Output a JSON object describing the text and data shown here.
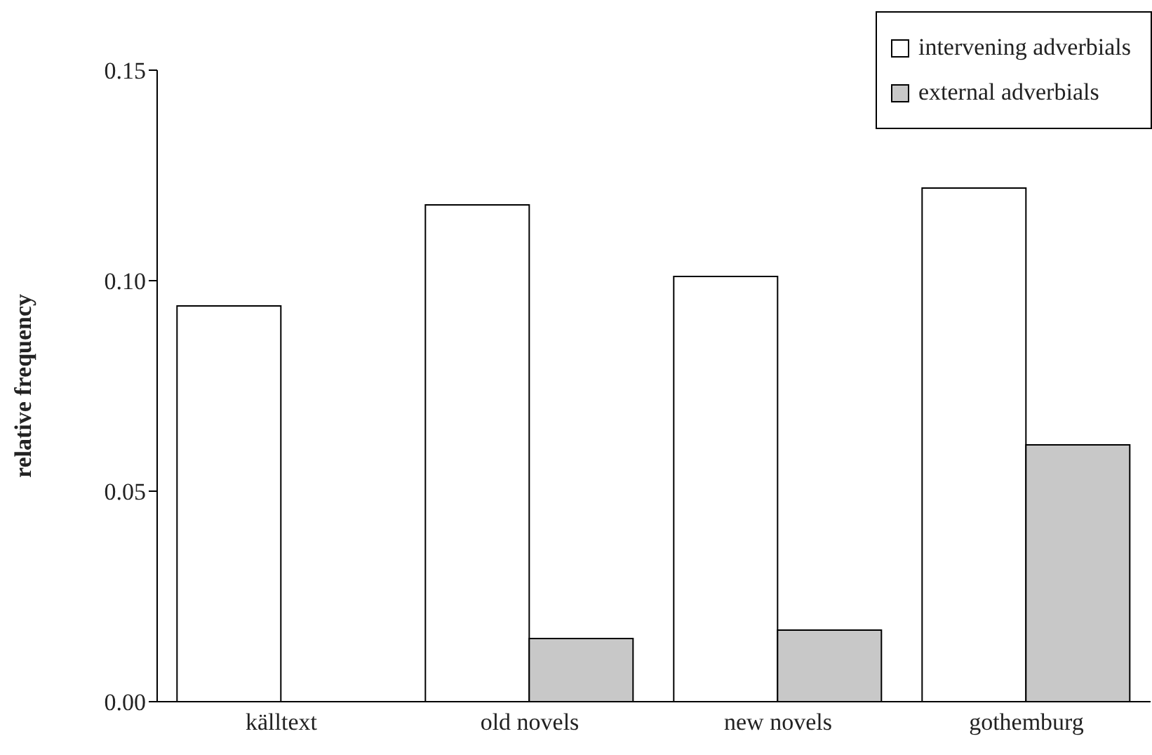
{
  "chart_data": {
    "type": "bar",
    "ylabel": "relative frequency",
    "categories": [
      "källtext",
      "old novels",
      "new novels",
      "gothemburg"
    ],
    "series": [
      {
        "name": "intervening adverbials",
        "color": "#ffffff",
        "values": [
          0.094,
          0.118,
          0.101,
          0.122
        ]
      },
      {
        "name": "external adverbials",
        "color": "#c8c8c8",
        "values": [
          0,
          0.015,
          0.017,
          0.061
        ]
      }
    ],
    "ylim": [
      0,
      0.15
    ],
    "yticks": [
      {
        "value": 0,
        "label": "0.00"
      },
      0.05,
      {
        "value": 0.1,
        "label": "0.10"
      },
      {
        "value": 0.15,
        "label": "0.15"
      }
    ],
    "grid": false,
    "legend": "top right"
  }
}
